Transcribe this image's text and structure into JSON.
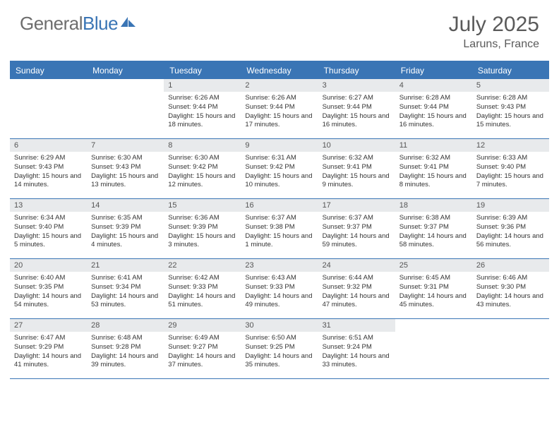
{
  "logo": {
    "general": "General",
    "blue": "Blue"
  },
  "title": "July 2025",
  "location": "Laruns, France",
  "colors": {
    "accent": "#3a75b5",
    "daynum_bg": "#e8eaec",
    "text_muted": "#5a5a5a",
    "text_body": "#333333",
    "logo_gray": "#6d6d6d"
  },
  "dayheaders": [
    "Sunday",
    "Monday",
    "Tuesday",
    "Wednesday",
    "Thursday",
    "Friday",
    "Saturday"
  ],
  "weeks": [
    [
      null,
      null,
      {
        "n": "1",
        "sr": "6:26 AM",
        "ss": "9:44 PM",
        "dl": "15 hours and 18 minutes."
      },
      {
        "n": "2",
        "sr": "6:26 AM",
        "ss": "9:44 PM",
        "dl": "15 hours and 17 minutes."
      },
      {
        "n": "3",
        "sr": "6:27 AM",
        "ss": "9:44 PM",
        "dl": "15 hours and 16 minutes."
      },
      {
        "n": "4",
        "sr": "6:28 AM",
        "ss": "9:44 PM",
        "dl": "15 hours and 16 minutes."
      },
      {
        "n": "5",
        "sr": "6:28 AM",
        "ss": "9:43 PM",
        "dl": "15 hours and 15 minutes."
      }
    ],
    [
      {
        "n": "6",
        "sr": "6:29 AM",
        "ss": "9:43 PM",
        "dl": "15 hours and 14 minutes."
      },
      {
        "n": "7",
        "sr": "6:30 AM",
        "ss": "9:43 PM",
        "dl": "15 hours and 13 minutes."
      },
      {
        "n": "8",
        "sr": "6:30 AM",
        "ss": "9:42 PM",
        "dl": "15 hours and 12 minutes."
      },
      {
        "n": "9",
        "sr": "6:31 AM",
        "ss": "9:42 PM",
        "dl": "15 hours and 10 minutes."
      },
      {
        "n": "10",
        "sr": "6:32 AM",
        "ss": "9:41 PM",
        "dl": "15 hours and 9 minutes."
      },
      {
        "n": "11",
        "sr": "6:32 AM",
        "ss": "9:41 PM",
        "dl": "15 hours and 8 minutes."
      },
      {
        "n": "12",
        "sr": "6:33 AM",
        "ss": "9:40 PM",
        "dl": "15 hours and 7 minutes."
      }
    ],
    [
      {
        "n": "13",
        "sr": "6:34 AM",
        "ss": "9:40 PM",
        "dl": "15 hours and 5 minutes."
      },
      {
        "n": "14",
        "sr": "6:35 AM",
        "ss": "9:39 PM",
        "dl": "15 hours and 4 minutes."
      },
      {
        "n": "15",
        "sr": "6:36 AM",
        "ss": "9:39 PM",
        "dl": "15 hours and 3 minutes."
      },
      {
        "n": "16",
        "sr": "6:37 AM",
        "ss": "9:38 PM",
        "dl": "15 hours and 1 minute."
      },
      {
        "n": "17",
        "sr": "6:37 AM",
        "ss": "9:37 PM",
        "dl": "14 hours and 59 minutes."
      },
      {
        "n": "18",
        "sr": "6:38 AM",
        "ss": "9:37 PM",
        "dl": "14 hours and 58 minutes."
      },
      {
        "n": "19",
        "sr": "6:39 AM",
        "ss": "9:36 PM",
        "dl": "14 hours and 56 minutes."
      }
    ],
    [
      {
        "n": "20",
        "sr": "6:40 AM",
        "ss": "9:35 PM",
        "dl": "14 hours and 54 minutes."
      },
      {
        "n": "21",
        "sr": "6:41 AM",
        "ss": "9:34 PM",
        "dl": "14 hours and 53 minutes."
      },
      {
        "n": "22",
        "sr": "6:42 AM",
        "ss": "9:33 PM",
        "dl": "14 hours and 51 minutes."
      },
      {
        "n": "23",
        "sr": "6:43 AM",
        "ss": "9:33 PM",
        "dl": "14 hours and 49 minutes."
      },
      {
        "n": "24",
        "sr": "6:44 AM",
        "ss": "9:32 PM",
        "dl": "14 hours and 47 minutes."
      },
      {
        "n": "25",
        "sr": "6:45 AM",
        "ss": "9:31 PM",
        "dl": "14 hours and 45 minutes."
      },
      {
        "n": "26",
        "sr": "6:46 AM",
        "ss": "9:30 PM",
        "dl": "14 hours and 43 minutes."
      }
    ],
    [
      {
        "n": "27",
        "sr": "6:47 AM",
        "ss": "9:29 PM",
        "dl": "14 hours and 41 minutes."
      },
      {
        "n": "28",
        "sr": "6:48 AM",
        "ss": "9:28 PM",
        "dl": "14 hours and 39 minutes."
      },
      {
        "n": "29",
        "sr": "6:49 AM",
        "ss": "9:27 PM",
        "dl": "14 hours and 37 minutes."
      },
      {
        "n": "30",
        "sr": "6:50 AM",
        "ss": "9:25 PM",
        "dl": "14 hours and 35 minutes."
      },
      {
        "n": "31",
        "sr": "6:51 AM",
        "ss": "9:24 PM",
        "dl": "14 hours and 33 minutes."
      },
      null,
      null
    ]
  ],
  "labels": {
    "sunrise": "Sunrise:",
    "sunset": "Sunset:",
    "daylight": "Daylight:"
  }
}
